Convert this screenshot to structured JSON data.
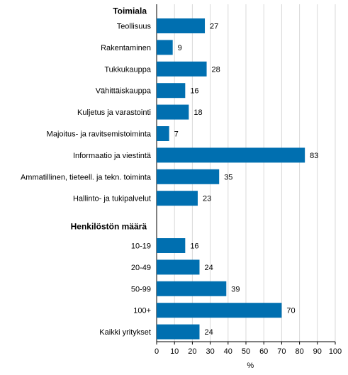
{
  "chart_data": {
    "type": "bar",
    "orientation": "horizontal",
    "xlabel": "%",
    "xlim": [
      0,
      100
    ],
    "xticks": [
      0,
      10,
      20,
      30,
      40,
      50,
      60,
      70,
      80,
      90,
      100
    ],
    "grid": true,
    "bar_color": "#006fb0",
    "groups": [
      {
        "title": "Toimiala",
        "categories": [
          "Teollisuus",
          "Rakentaminen",
          "Tukkukauppa",
          "Vähittäiskauppa",
          "Kuljetus ja varastointi",
          "Majoitus- ja ravitsemistoiminta",
          "Informaatio ja viestintä",
          "Ammatillinen, tieteell. ja tekn. toiminta",
          "Hallinto- ja tukipalvelut"
        ],
        "values": [
          27,
          9,
          28,
          16,
          18,
          7,
          83,
          35,
          23
        ]
      },
      {
        "title": "Henkilöstön määrä",
        "categories": [
          "10-19",
          "20-49",
          "50-99",
          "100+",
          "Kaikki yritykset"
        ],
        "values": [
          16,
          24,
          39,
          70,
          24
        ]
      }
    ]
  }
}
